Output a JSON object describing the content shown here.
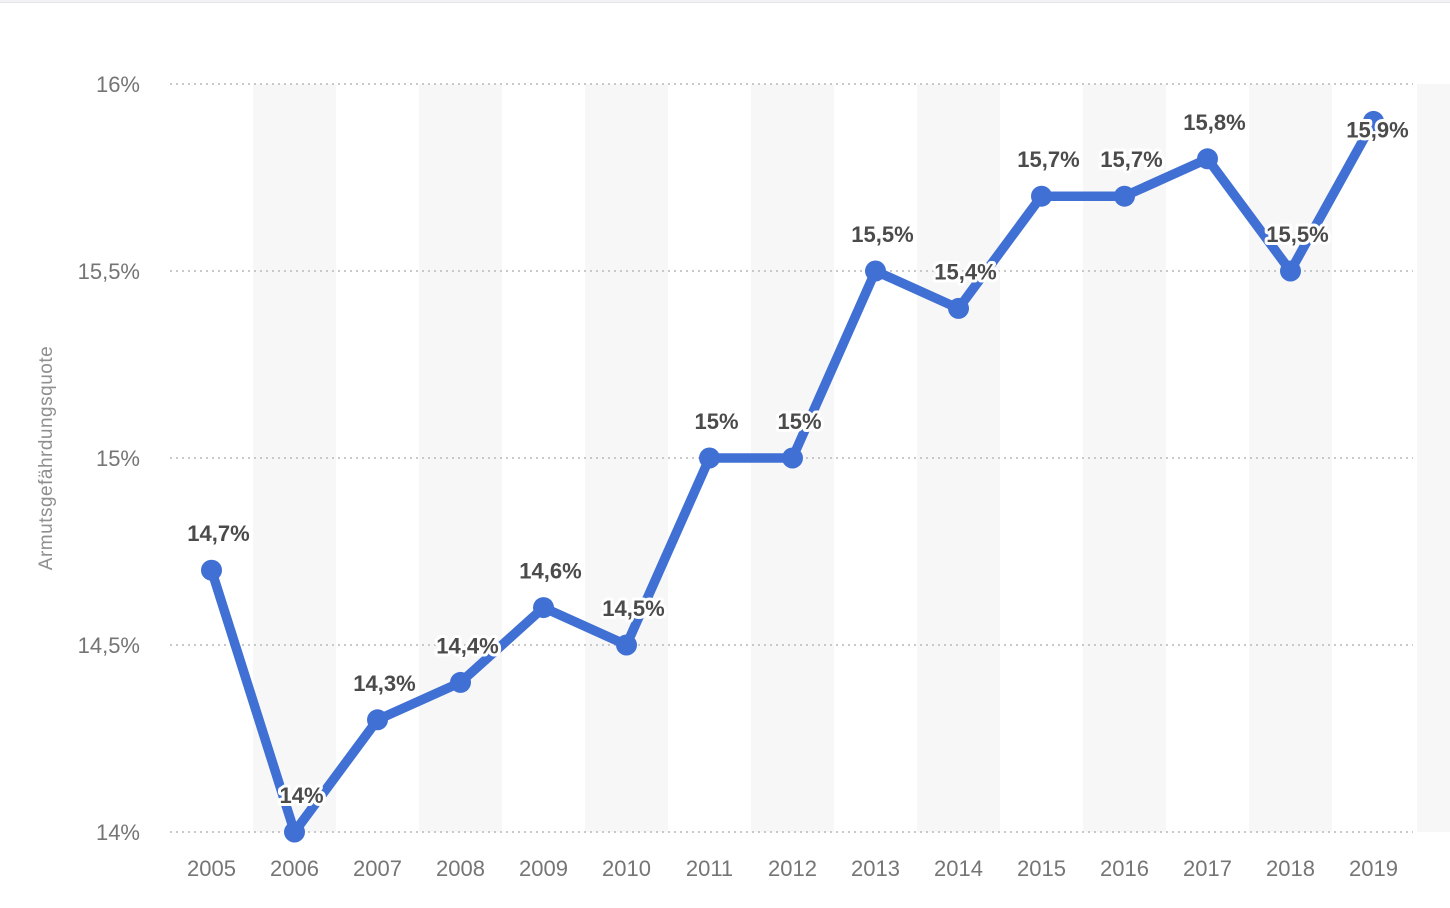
{
  "page": {
    "background": "#ffffff",
    "top_strip_color": "#f2f2f4",
    "top_strip_border": "#e4e4e7"
  },
  "chart_data": {
    "type": "line",
    "title": "",
    "xlabel": "",
    "ylabel": "Armutsgefährdungsquote",
    "categories": [
      "2005",
      "2006",
      "2007",
      "2008",
      "2009",
      "2010",
      "2011",
      "2012",
      "2013",
      "2014",
      "2015",
      "2016",
      "2017",
      "2018",
      "2019"
    ],
    "series": [
      {
        "name": "Armutsgefährdungsquote",
        "values": [
          14.7,
          14.0,
          14.3,
          14.4,
          14.6,
          14.5,
          15.0,
          15.0,
          15.5,
          15.4,
          15.7,
          15.7,
          15.8,
          15.5,
          15.9
        ]
      }
    ],
    "point_labels": [
      "14,7%",
      "14%",
      "14,3%",
      "14,4%",
      "14,6%",
      "14,5%",
      "15%",
      "15%",
      "15,5%",
      "15,4%",
      "15,7%",
      "15,7%",
      "15,8%",
      "15,5%",
      "15,9%"
    ],
    "ylim": [
      14,
      16
    ],
    "y_ticks": [
      {
        "value": 16,
        "label": "16%"
      },
      {
        "value": 15.5,
        "label": "15,5%"
      },
      {
        "value": 15,
        "label": "15%"
      },
      {
        "value": 14.5,
        "label": "14,5%"
      },
      {
        "value": 14,
        "label": "14%"
      }
    ],
    "grid": "horizontal-dotted",
    "legend": "none",
    "band_pattern": "alternating vertical stripes on even years",
    "colors": {
      "line": "#4070d4",
      "point": "#4070d4",
      "band": "#f7f7f8",
      "gridline": "#c9c9cc",
      "data_label": "#4b4b4b",
      "tick_label": "#757575",
      "axis_title": "#8f8f8f"
    }
  }
}
